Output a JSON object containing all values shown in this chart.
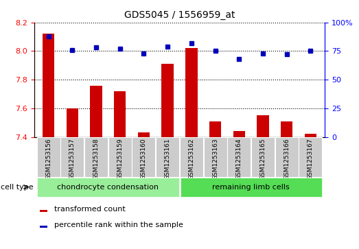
{
  "title": "GDS5045 / 1556959_at",
  "samples": [
    "GSM1253156",
    "GSM1253157",
    "GSM1253158",
    "GSM1253159",
    "GSM1253160",
    "GSM1253161",
    "GSM1253162",
    "GSM1253163",
    "GSM1253164",
    "GSM1253165",
    "GSM1253166",
    "GSM1253167"
  ],
  "transformed_count": [
    8.12,
    7.6,
    7.76,
    7.72,
    7.43,
    7.91,
    8.02,
    7.51,
    7.44,
    7.55,
    7.51,
    7.42
  ],
  "percentile_rank": [
    88,
    76,
    78,
    77,
    73,
    79,
    82,
    75,
    68,
    73,
    72,
    75
  ],
  "ylim_left": [
    7.4,
    8.2
  ],
  "ylim_right": [
    0,
    100
  ],
  "yticks_left": [
    7.4,
    7.6,
    7.8,
    8.0,
    8.2
  ],
  "yticks_right": [
    0,
    25,
    50,
    75,
    100
  ],
  "ytick_labels_right": [
    "0",
    "25",
    "50",
    "75",
    "100%"
  ],
  "group1_label": "chondrocyte condensation",
  "group2_label": "remaining limb cells",
  "group1_count": 6,
  "group2_count": 6,
  "cell_type_label": "cell type",
  "legend1": "transformed count",
  "legend2": "percentile rank within the sample",
  "bar_color": "#cc0000",
  "dot_color": "#0000bb",
  "group1_color": "#99ee99",
  "group2_color": "#55dd55",
  "cell_bg_color": "#cccccc",
  "bar_width": 0.5,
  "figsize": [
    5.23,
    3.63
  ],
  "dpi": 100
}
